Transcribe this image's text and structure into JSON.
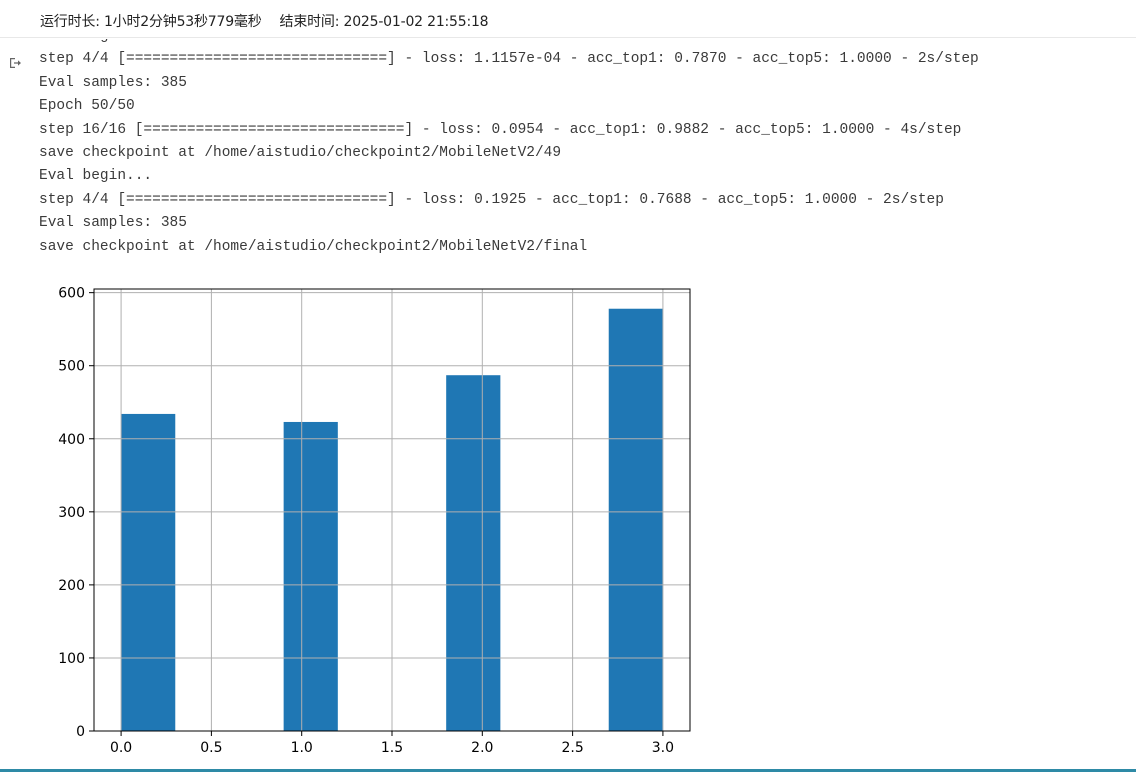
{
  "status": {
    "runtime_label": "运行时长: 1小时2分钟53秒779毫秒",
    "end_label": "结束时间: 2025-01-02 21:55:18"
  },
  "output": {
    "icon": "output-arrow-icon",
    "lines": [
      "Eval begin...",
      "step 4/4 [==============================] - loss: 1.1157e-04 - acc_top1: 0.7870 - acc_top5: 1.0000 - 2s/step",
      "Eval samples: 385",
      "Epoch 50/50",
      "step 16/16 [==============================] - loss: 0.0954 - acc_top1: 0.9882 - acc_top5: 1.0000 - 4s/step",
      "save checkpoint at /home/aistudio/checkpoint2/MobileNetV2/49",
      "Eval begin...",
      "step 4/4 [==============================] - loss: 0.1925 - acc_top1: 0.7688 - acc_top5: 1.0000 - 2s/step",
      "Eval samples: 385",
      "save checkpoint at /home/aistudio/checkpoint2/MobileNetV2/final"
    ]
  },
  "chart_data": {
    "type": "bar",
    "title": "",
    "xlabel": "",
    "ylabel": "",
    "bars": [
      {
        "x_start": 0.0,
        "x_end": 0.3,
        "value": 434
      },
      {
        "x_start": 0.9,
        "x_end": 1.2,
        "value": 423
      },
      {
        "x_start": 1.8,
        "x_end": 2.1,
        "value": 487
      },
      {
        "x_start": 2.7,
        "x_end": 3.0,
        "value": 578
      }
    ],
    "xlim": [
      -0.15,
      3.15
    ],
    "ylim": [
      0,
      605
    ],
    "xticks": [
      0.0,
      0.5,
      1.0,
      1.5,
      2.0,
      2.5,
      3.0
    ],
    "xtick_labels": [
      "0.0",
      "0.5",
      "1.0",
      "1.5",
      "2.0",
      "2.5",
      "3.0"
    ],
    "yticks": [
      0,
      100,
      200,
      300,
      400,
      500,
      600
    ],
    "ytick_labels": [
      "0",
      "100",
      "200",
      "300",
      "400",
      "500",
      "600"
    ],
    "grid": true,
    "bar_color": "#1f77b4",
    "grid_color": "#b0b0b0"
  },
  "accent_color": "#2e8aa6"
}
